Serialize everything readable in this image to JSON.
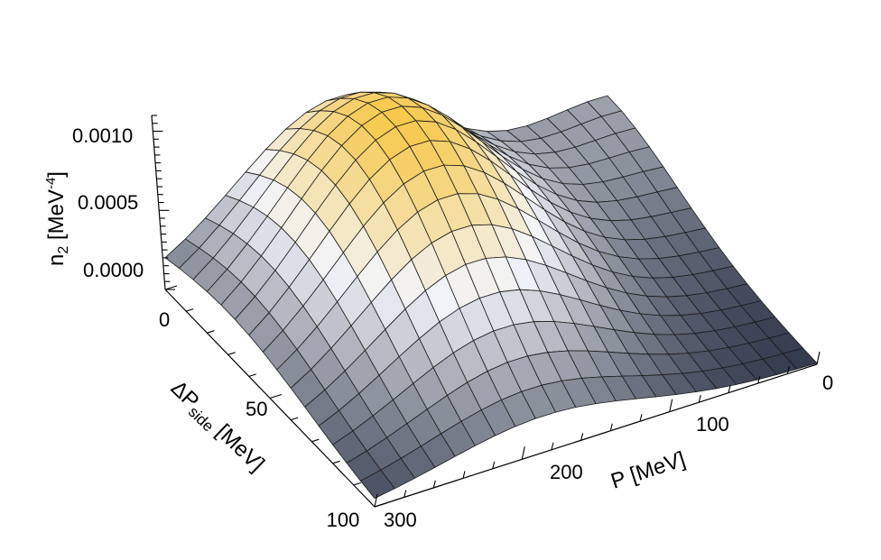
{
  "chart_data": {
    "type": "surface",
    "title": "",
    "xlabel": "P [MeV]",
    "ylabel_main": "ΔP",
    "ylabel_sub": "side",
    "ylabel_unit": " [MeV]",
    "zlabel_main": "n",
    "zlabel_sub": "2",
    "zlabel_unit_pre": " [MeV",
    "zlabel_unit_sup": "-4",
    "zlabel_unit_post": "]",
    "xlim": [
      0,
      300
    ],
    "ylim": [
      0,
      100
    ],
    "zlim": [
      0.0,
      0.0011
    ],
    "x_ticks": [
      {
        "value": 0,
        "label": "0"
      },
      {
        "value": 100,
        "label": "100"
      },
      {
        "value": 200,
        "label": "200"
      },
      {
        "value": 300,
        "label": "300"
      }
    ],
    "y_ticks": [
      {
        "value": 0,
        "label": "0"
      },
      {
        "value": 50,
        "label": "50"
      },
      {
        "value": 100,
        "label": "100"
      }
    ],
    "z_ticks": [
      {
        "value": 0.0,
        "label": "0.0000"
      },
      {
        "value": 0.0005,
        "label": "0.0005"
      },
      {
        "value": 0.001,
        "label": "0.0010"
      }
    ],
    "surface_model": {
      "description": "n2(P, dPside) sampled on a 22x15 grid",
      "peak_value": 0.00115,
      "peak_P": 185,
      "peak_dPside": 30,
      "width_P": 95,
      "width_dPside": 55,
      "ridge_value": 0.0003,
      "ridge_width_P": 70
    },
    "grid": {
      "x_lines": 22,
      "y_lines": 15
    },
    "colors": {
      "low": "#2e3649",
      "mid": "#f3f5fb",
      "high": "#f6c84a",
      "background": "#ffffff"
    }
  }
}
